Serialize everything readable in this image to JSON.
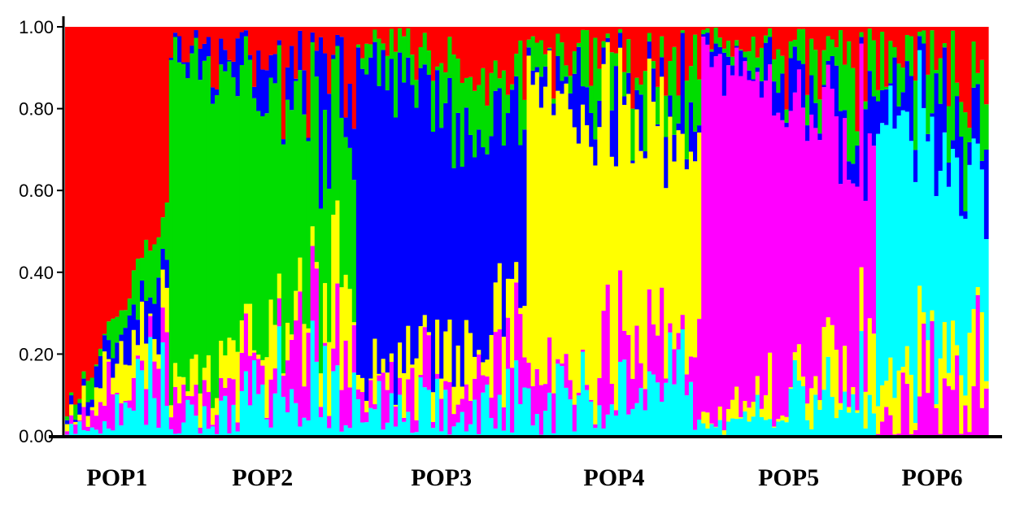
{
  "colors": {
    "cluster1": "#ff0000",
    "cluster2": "#00dd00",
    "cluster3": "#0000ff",
    "cluster4": "#ffff00",
    "cluster5": "#ff00ff",
    "cluster6": "#00ffff",
    "axis": "#000000"
  },
  "chart_data": {
    "type": "bar",
    "stacked": true,
    "ylim": [
      0,
      1
    ],
    "yticks": [
      "0.00",
      "0.20",
      "0.40",
      "0.60",
      "0.80",
      "1.00"
    ],
    "series_order": [
      "cluster6",
      "cluster5",
      "cluster4",
      "cluster3",
      "cluster2",
      "cluster1"
    ],
    "populations": [
      {
        "label": "POP1",
        "count": 25,
        "dominant": "cluster1",
        "domStart": 0.94,
        "domEnd": 0.46
      },
      {
        "label": "POP2",
        "count": 45,
        "dominant": "cluster2",
        "domStart": 0.82,
        "domEnd": 0.35
      },
      {
        "label": "POP3",
        "count": 41,
        "dominant": "cluster3",
        "domStart": 0.78,
        "domEnd": 0.4
      },
      {
        "label": "POP4",
        "count": 42,
        "dominant": "cluster4",
        "domStart": 0.72,
        "domEnd": 0.45
      },
      {
        "label": "POP5",
        "count": 42,
        "dominant": "cluster5",
        "domStart": 0.9,
        "domEnd": 0.48
      },
      {
        "label": "POP6",
        "count": 27,
        "dominant": "cluster6",
        "domStart": 0.68,
        "domEnd": 0.34
      }
    ]
  }
}
